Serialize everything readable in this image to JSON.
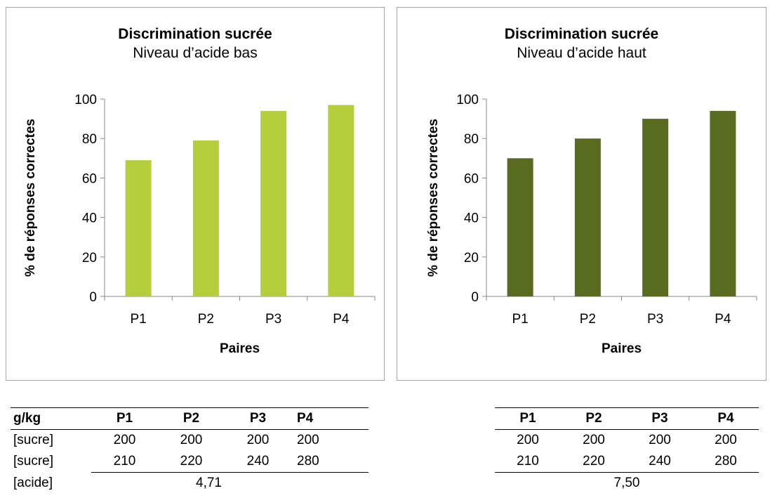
{
  "chart_data": [
    {
      "type": "bar",
      "title": "Discrimination sucrée",
      "subtitle": "Niveau d’acide bas",
      "xlabel": "Paires",
      "ylabel": "% de réponses correctes",
      "categories": [
        "P1",
        "P2",
        "P3",
        "P4"
      ],
      "values": [
        69,
        79,
        94,
        97
      ],
      "ylim": [
        0,
        100
      ],
      "yticks": [
        0,
        20,
        40,
        60,
        80,
        100
      ],
      "color": "#b5cf3c",
      "grid": false
    },
    {
      "type": "bar",
      "title": "Discrimination sucrée",
      "subtitle": "Niveau d’acide haut",
      "xlabel": "Paires",
      "ylabel": "% de réponses correctes",
      "categories": [
        "P1",
        "P2",
        "P3",
        "P4"
      ],
      "values": [
        70,
        80,
        90,
        94
      ],
      "ylim": [
        0,
        100
      ],
      "yticks": [
        0,
        20,
        40,
        60,
        80,
        100
      ],
      "color": "#596b1e",
      "grid": false
    }
  ],
  "tables": {
    "left": {
      "unit_header": "g/kg",
      "headers": [
        "P1",
        "P2",
        "P3",
        "P4"
      ],
      "rows": [
        {
          "label": "[sucre]",
          "values": [
            "200",
            "200",
            "200",
            "200"
          ]
        },
        {
          "label": "[sucre]",
          "values": [
            "210",
            "220",
            "240",
            "280"
          ]
        }
      ],
      "acid_label": "[acide]",
      "acid_value": "4,71"
    },
    "right": {
      "headers": [
        "P1",
        "P2",
        "P3",
        "P4"
      ],
      "rows": [
        {
          "values": [
            "200",
            "200",
            "200",
            "200"
          ]
        },
        {
          "values": [
            "210",
            "220",
            "240",
            "280"
          ]
        }
      ],
      "acid_value": "7,50"
    }
  }
}
